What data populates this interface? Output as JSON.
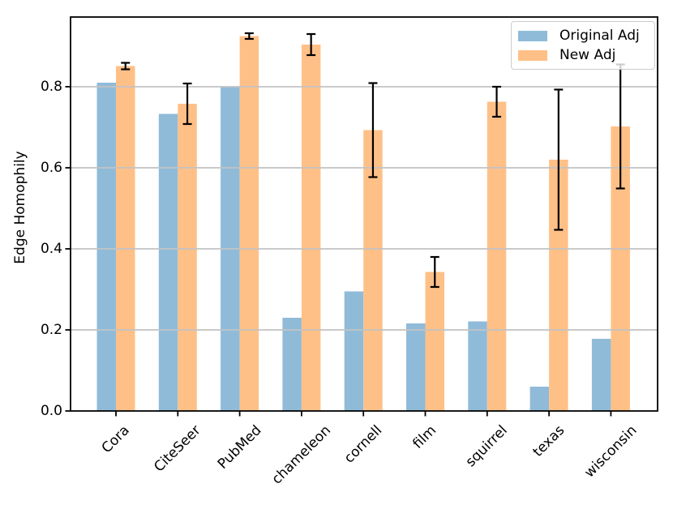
{
  "chart_data": {
    "type": "bar",
    "title": "",
    "xlabel": "",
    "ylabel": "Edge Homophily",
    "categories": [
      "Cora",
      "CiteSeer",
      "PubMed",
      "chameleon",
      "cornell",
      "film",
      "squirrel",
      "texas",
      "wisconsin"
    ],
    "series": [
      {
        "name": "Original Adj",
        "color": "#8fbbd9",
        "values": [
          0.81,
          0.733,
          0.8,
          0.23,
          0.295,
          0.216,
          0.221,
          0.06,
          0.178
        ]
      },
      {
        "name": "New Adj",
        "color": "#ffc087",
        "values": [
          0.851,
          0.758,
          0.925,
          0.904,
          0.693,
          0.343,
          0.763,
          0.62,
          0.702
        ],
        "errors": [
          0.008,
          0.05,
          0.007,
          0.026,
          0.116,
          0.037,
          0.037,
          0.173,
          0.153
        ]
      }
    ],
    "ylim": [
      0,
      0.972
    ],
    "yticks": [
      0.0,
      0.2,
      0.4,
      0.6,
      0.8
    ],
    "ytick_labels": [
      "0.0",
      "0.2",
      "0.4",
      "0.6",
      "0.8"
    ],
    "xtick_rotation": 45,
    "grid": "horizontal",
    "grid_color": "#c3c3c3",
    "error_bar_color": "#000000",
    "spine_color": "#000000",
    "legend_position": "upper right"
  }
}
